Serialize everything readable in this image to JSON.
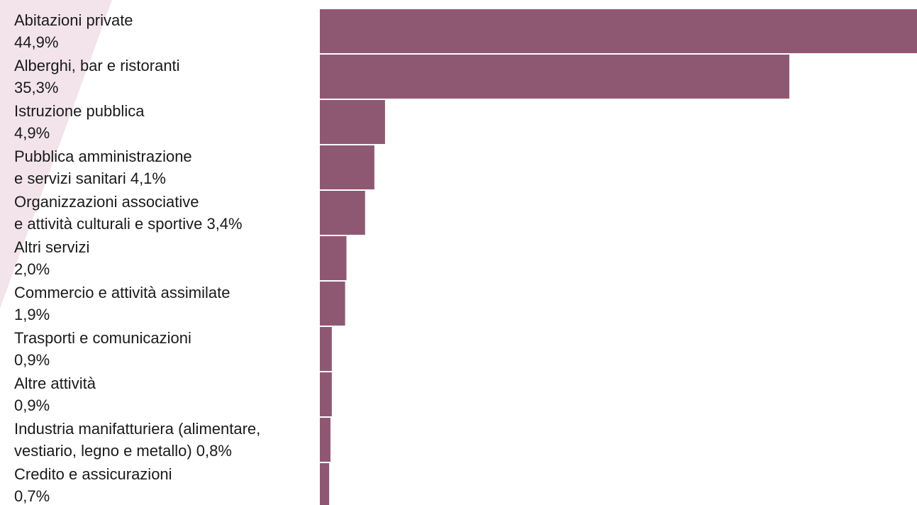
{
  "chart_data": {
    "type": "bar",
    "orientation": "horizontal",
    "colors": {
      "bar": "#8f5872",
      "decoration": "#f2e4ea"
    },
    "categories": [
      "Abitazioni private",
      "Alberghi, bar e ristoranti",
      "Istruzione pubblica",
      "Pubblica amministrazione e servizi sanitari",
      "Organizzazioni associative e attività culturali e sportive",
      "Altri servizi",
      "Commercio e attività assimilate",
      "Trasporti e comunicazioni",
      "Altre attività",
      "Industria manifatturiera (alimentare, vestiario, legno e metallo)",
      "Credito e assicurazioni"
    ],
    "values": [
      44.9,
      35.3,
      4.9,
      4.1,
      3.4,
      2.0,
      1.9,
      0.9,
      0.9,
      0.8,
      0.7
    ],
    "unit": "%",
    "xlim": [
      0,
      44.9
    ],
    "grid": false,
    "legend": "none",
    "labels": [
      {
        "line1": "Abitazioni private",
        "line2": "44,9%"
      },
      {
        "line1": "Alberghi, bar  e ristoranti",
        "line2": "35,3%"
      },
      {
        "line1": "Istruzione pubblica",
        "line2": "4,9%"
      },
      {
        "line1": "Pubblica amministrazione",
        "line2": "e servizi sanitari 4,1%"
      },
      {
        "line1": "Organizzazioni associative",
        "line2": "e attività culturali e sportive 3,4%"
      },
      {
        "line1": "Altri servizi",
        "line2": "2,0%"
      },
      {
        "line1": "Commercio e attività assimilate",
        "line2": "1,9%"
      },
      {
        "line1": "Trasporti e comunicazioni",
        "line2": "0,9%"
      },
      {
        "line1": "Altre attività",
        "line2": "0,9%"
      },
      {
        "line1": "Industria manifatturiera (alimentare,",
        "line2": "vestiario, legno e metallo) 0,8%"
      },
      {
        "line1": "Credito e assicurazioni",
        "line2": "0,7%"
      }
    ]
  }
}
